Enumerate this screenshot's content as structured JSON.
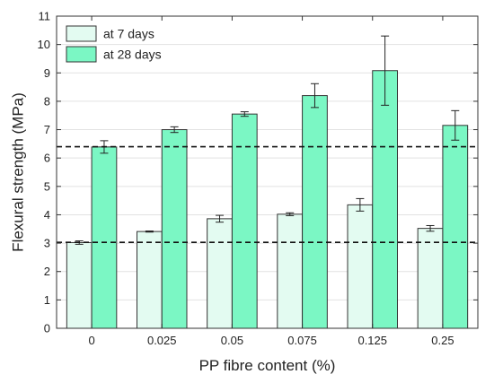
{
  "chart_data": {
    "type": "bar",
    "title": "",
    "xlabel": "PP fibre content (%)",
    "ylabel": "Flexural strength (MPa)",
    "categories": [
      "0",
      "0.025",
      "0.05",
      "0.075",
      "0.125",
      "0.25"
    ],
    "ylim": [
      0,
      11
    ],
    "yticks": [
      "0",
      "1",
      "2",
      "3",
      "4",
      "5",
      "6",
      "7",
      "8",
      "9",
      "10",
      "11"
    ],
    "grid": true,
    "legend_position": "top-left",
    "series": [
      {
        "name": "at 7 days",
        "color": "#e3fbf1",
        "values": [
          3.02,
          3.41,
          3.86,
          4.02,
          4.35,
          3.52
        ],
        "errors": [
          0.06,
          0.02,
          0.12,
          0.05,
          0.22,
          0.1
        ]
      },
      {
        "name": "at 28 days",
        "color": "#7bf7c4",
        "values": [
          6.39,
          7.0,
          7.55,
          8.2,
          9.08,
          7.15
        ],
        "errors": [
          0.22,
          0.1,
          0.08,
          0.42,
          1.22,
          0.52
        ]
      }
    ],
    "reference_lines": [
      6.4,
      3.03
    ]
  }
}
